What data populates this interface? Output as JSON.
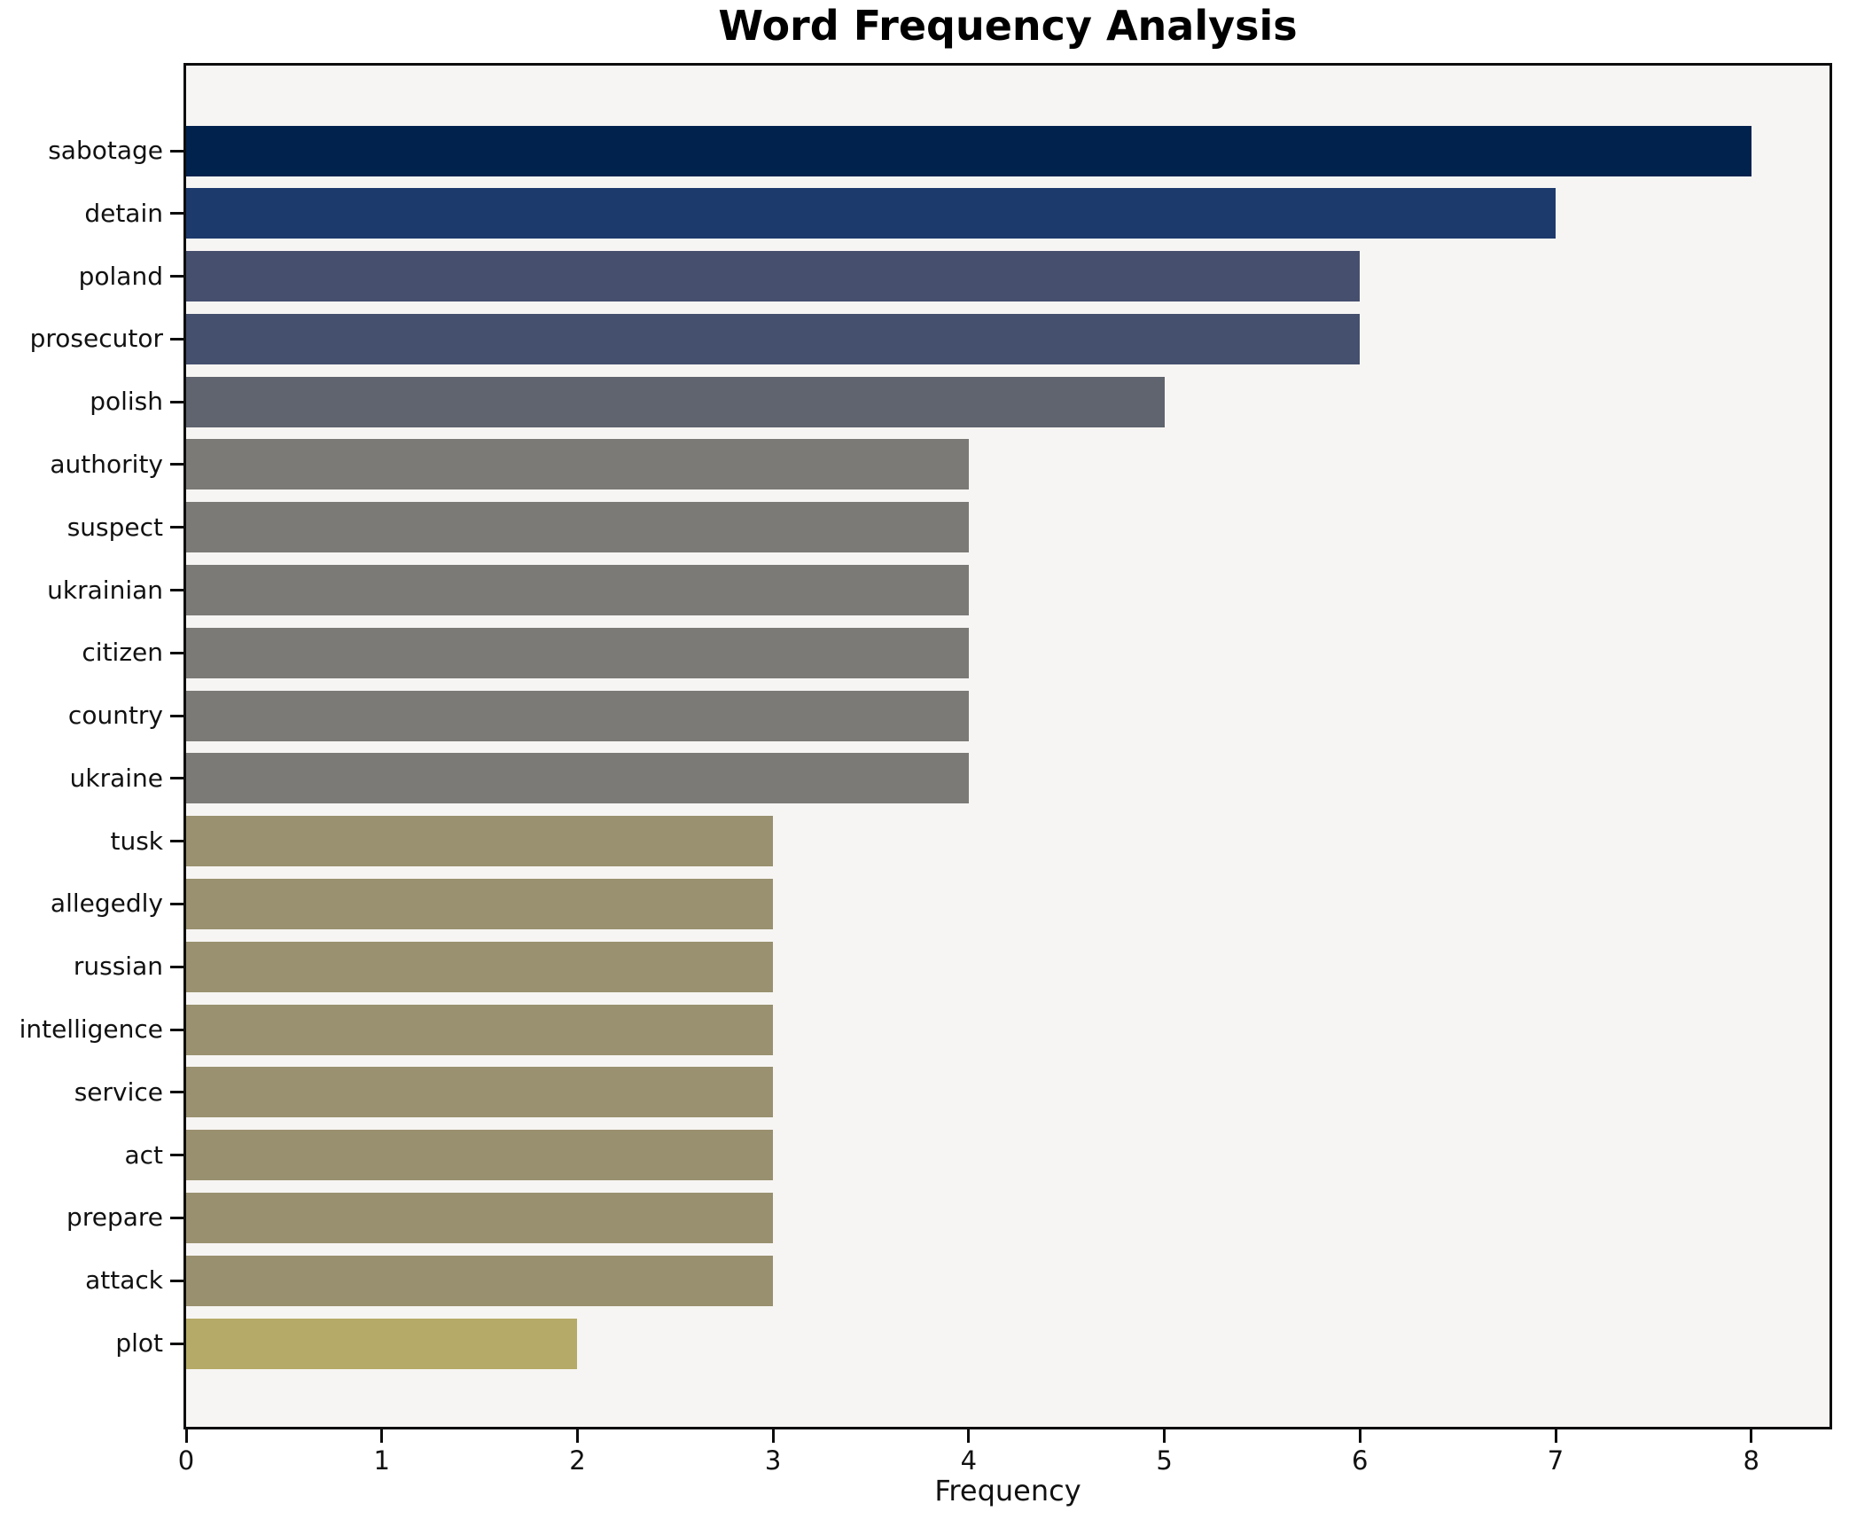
{
  "title": "Word Frequency Analysis",
  "chart_data": {
    "type": "bar",
    "orientation": "horizontal",
    "title": "Word Frequency Analysis",
    "xlabel": "Frequency",
    "ylabel": "",
    "xlim": [
      0,
      8.4
    ],
    "x_ticks": [
      0,
      1,
      2,
      3,
      4,
      5,
      6,
      7,
      8
    ],
    "grid": false,
    "legend": false,
    "plot_background": "#f7f5f3",
    "spine_color": "#0d0d0d",
    "categories": [
      "sabotage",
      "detain",
      "poland",
      "prosecutor",
      "polish",
      "authority",
      "suspect",
      "ukrainian",
      "citizen",
      "country",
      "ukraine",
      "tusk",
      "allegedly",
      "russian",
      "intelligence",
      "service",
      "act",
      "prepare",
      "attack",
      "plot"
    ],
    "values": [
      8,
      7,
      6,
      6,
      5,
      4,
      4,
      4,
      4,
      4,
      4,
      3,
      3,
      3,
      3,
      3,
      3,
      3,
      3,
      2
    ],
    "bar_colors": [
      "#02224e",
      "#1d3a6d",
      "#46506e",
      "#45506e",
      "#5f646f",
      "#7b7a77",
      "#7b7a77",
      "#7b7a77",
      "#7b7a77",
      "#7b7a77",
      "#7b7a77",
      "#99916f",
      "#99916f",
      "#99916f",
      "#99916f",
      "#99916f",
      "#99906f",
      "#99906f",
      "#99906f",
      "#b5aa67"
    ]
  }
}
